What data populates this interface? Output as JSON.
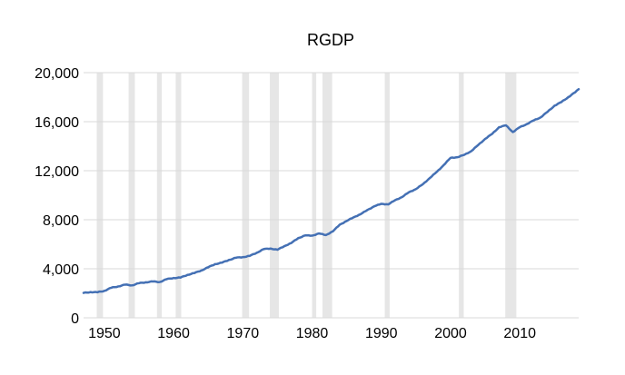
{
  "chart_data": {
    "type": "line",
    "title": "RGDP",
    "xlabel": "",
    "ylabel": "",
    "xlim": [
      1947,
      2018.5
    ],
    "ylim": [
      0,
      20000
    ],
    "x_ticks": [
      1950,
      1960,
      1970,
      1980,
      1990,
      2000,
      2010
    ],
    "y_ticks": [
      0,
      4000,
      8000,
      12000,
      16000,
      20000
    ],
    "y_tick_labels": [
      "0",
      "4,000",
      "8,000",
      "12,000",
      "16,000",
      "20,000"
    ],
    "grid": true,
    "line_color": "#4470B4",
    "recession_color": "#E6E6E6",
    "recessions": [
      [
        1948.9,
        1949.8
      ],
      [
        1953.5,
        1954.4
      ],
      [
        1957.6,
        1958.3
      ],
      [
        1960.3,
        1961.1
      ],
      [
        1969.9,
        1970.9
      ],
      [
        1973.9,
        1975.2
      ],
      [
        1980.0,
        1980.6
      ],
      [
        1981.5,
        1982.9
      ],
      [
        1990.5,
        1991.2
      ],
      [
        2001.2,
        2001.9
      ],
      [
        2007.9,
        2009.5
      ]
    ],
    "series": [
      {
        "x": [
          1947,
          1948,
          1949,
          1950,
          1951,
          1952,
          1953,
          1954,
          1955,
          1956,
          1957,
          1958,
          1959,
          1960,
          1961,
          1962,
          1963,
          1964,
          1965,
          1966,
          1967,
          1968,
          1969,
          1970,
          1971,
          1972,
          1973,
          1974,
          1975,
          1976,
          1977,
          1978,
          1979,
          1980,
          1981,
          1982,
          1983,
          1984,
          1985,
          1986,
          1987,
          1988,
          1989,
          1990,
          1991,
          1992,
          1993,
          1994,
          1995,
          1996,
          1997,
          1998,
          1999,
          2000,
          2001,
          2002,
          2003,
          2004,
          2005,
          2006,
          2007,
          2008,
          2009,
          2010,
          2011,
          2012,
          2013,
          2014,
          2015,
          2016,
          2017,
          2018,
          2018.5
        ],
        "values": [
          2030,
          2100,
          2080,
          2200,
          2450,
          2560,
          2700,
          2650,
          2820,
          2900,
          2960,
          2920,
          3150,
          3250,
          3280,
          3500,
          3650,
          3860,
          4120,
          4380,
          4500,
          4720,
          4900,
          4950,
          5050,
          5300,
          5600,
          5650,
          5550,
          5850,
          6100,
          6500,
          6720,
          6700,
          6880,
          6750,
          7050,
          7600,
          7900,
          8200,
          8450,
          8800,
          9100,
          9300,
          9250,
          9600,
          9850,
          10250,
          10500,
          10900,
          11400,
          11900,
          12450,
          13050,
          13100,
          13300,
          13600,
          14100,
          14600,
          15000,
          15550,
          15700,
          15150,
          15550,
          15800,
          16100,
          16350,
          16800,
          17300,
          17600,
          18000,
          18400,
          18650
        ]
      }
    ]
  }
}
